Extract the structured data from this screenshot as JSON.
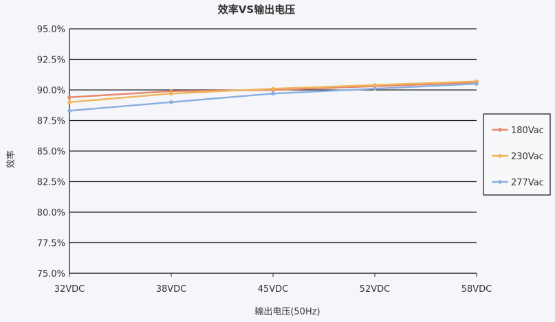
{
  "chart_data": {
    "type": "line",
    "title": "效率VS输出电压",
    "xlabel": "输出电压(50Hz)",
    "ylabel": "效率",
    "categories": [
      "32VDC",
      "38VDC",
      "45VDC",
      "52VDC",
      "58VDC"
    ],
    "ylim": [
      75.0,
      95.0
    ],
    "yticks": [
      "95.0%",
      "92.5%",
      "90.0%",
      "87.5%",
      "85.0%",
      "82.5%",
      "80.0%",
      "77.5%",
      "75.0%"
    ],
    "grid": true,
    "legend_position": "right",
    "series": [
      {
        "name": "180Vac",
        "color": "#e8876a",
        "values": [
          89.4,
          89.9,
          90.0,
          90.3,
          90.6
        ]
      },
      {
        "name": "230Vac",
        "color": "#f0b45a",
        "values": [
          89.0,
          89.7,
          90.1,
          90.4,
          90.7
        ]
      },
      {
        "name": "277Vac",
        "color": "#8aaee0",
        "values": [
          88.3,
          89.0,
          89.7,
          90.1,
          90.5
        ]
      }
    ]
  }
}
